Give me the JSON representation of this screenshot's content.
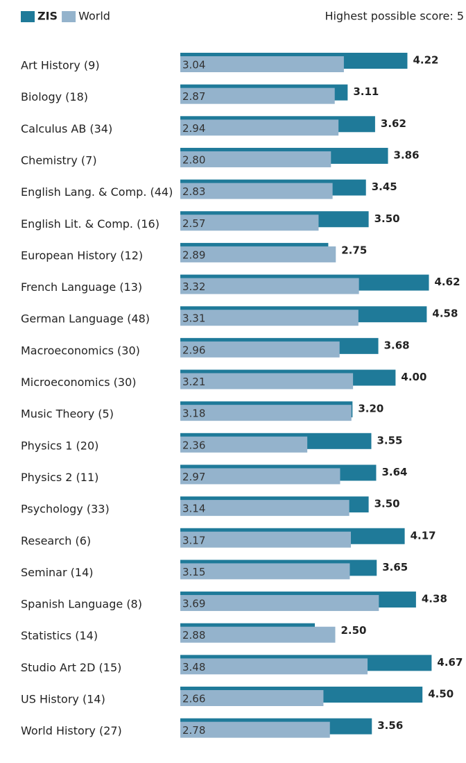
{
  "chart_data": {
    "type": "bar",
    "orientation": "horizontal",
    "subtitle": "Highest possible score: 5",
    "categories": [
      "Art History (9)",
      "Biology (18)",
      "Calculus AB (34)",
      "Chemistry (7)",
      "English Lang. & Comp. (44)",
      "English Lit. & Comp. (16)",
      "European History (12)",
      "French Language (13)",
      "German Language (48)",
      "Macroeconomics (30)",
      "Microeconomics (30)",
      "Music Theory (5)",
      "Physics 1 (20)",
      "Physics 2 (11)",
      "Psychology (33)",
      "Research (6)",
      "Seminar (14)",
      "Spanish Language (8)",
      "Statistics (14)",
      "Studio Art 2D (15)",
      "US History (14)",
      "World History (27)"
    ],
    "series": [
      {
        "name": "ZIS",
        "color": "#1f7a99",
        "values": [
          4.22,
          3.11,
          3.62,
          3.86,
          3.45,
          3.5,
          2.75,
          4.62,
          4.58,
          3.68,
          4.0,
          3.2,
          3.55,
          3.64,
          3.5,
          4.17,
          3.65,
          4.38,
          2.5,
          4.67,
          4.5,
          3.56
        ],
        "value_labels": [
          "4.22",
          "3.11",
          "3.62",
          "3.86",
          "3.45",
          "3.50",
          "2.75",
          "4.62",
          "4.58",
          "3.68",
          "4.00",
          "3.20",
          "3.55",
          "3.64",
          "3.50",
          "4.17",
          "3.65",
          "4.38",
          "2.50",
          "4.67",
          "4.50",
          "3.56"
        ]
      },
      {
        "name": "World",
        "color": "#94b3cc",
        "values": [
          3.04,
          2.87,
          2.94,
          2.8,
          2.83,
          2.57,
          2.89,
          3.32,
          3.31,
          2.96,
          3.21,
          3.18,
          2.36,
          2.97,
          3.14,
          3.17,
          3.15,
          3.69,
          2.88,
          3.48,
          2.66,
          2.78
        ],
        "value_labels": [
          "3.04",
          "2.87",
          "2.94",
          "2.80",
          "2.83",
          "2.57",
          "2.89",
          "3.32",
          "3.31",
          "2.96",
          "3.21",
          "3.18",
          "2.36",
          "2.97",
          "3.14",
          "3.17",
          "3.15",
          "3.69",
          "2.88",
          "3.48",
          "2.66",
          "2.78"
        ]
      }
    ],
    "xlim": [
      0,
      5
    ]
  }
}
